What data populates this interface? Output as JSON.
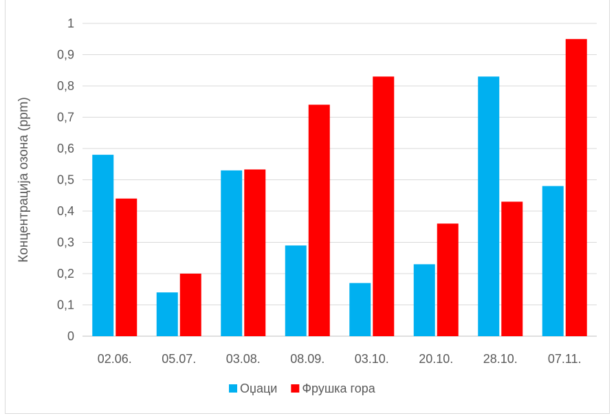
{
  "chart_data": {
    "type": "bar",
    "title": "",
    "ylabel": "Концентрација озона (ppm)",
    "xlabel": "",
    "categories": [
      "02.06.",
      "05.07.",
      "03.08.",
      "08.09.",
      "03.10.",
      "20.10.",
      "28.10.",
      "07.11."
    ],
    "series": [
      {
        "name": "Оџаци",
        "color": "#00b0f0",
        "values": [
          0.58,
          0.14,
          0.53,
          0.29,
          0.17,
          0.23,
          0.83,
          0.48
        ]
      },
      {
        "name": "Фрушка гора",
        "color": "#ff0000",
        "values": [
          0.44,
          0.2,
          0.533,
          0.74,
          0.83,
          0.36,
          0.43,
          0.95
        ]
      }
    ],
    "ylim": [
      0,
      1
    ],
    "yticks": [
      0,
      0.1,
      0.2,
      0.3,
      0.4,
      0.5,
      0.6,
      0.7,
      0.8,
      0.9,
      1
    ],
    "ytick_labels": [
      "0",
      "0,1",
      "0,2",
      "0,3",
      "0,4",
      "0,5",
      "0,6",
      "0,7",
      "0,8",
      "0,9",
      "1"
    ],
    "grid": true,
    "legend": "bottom"
  }
}
